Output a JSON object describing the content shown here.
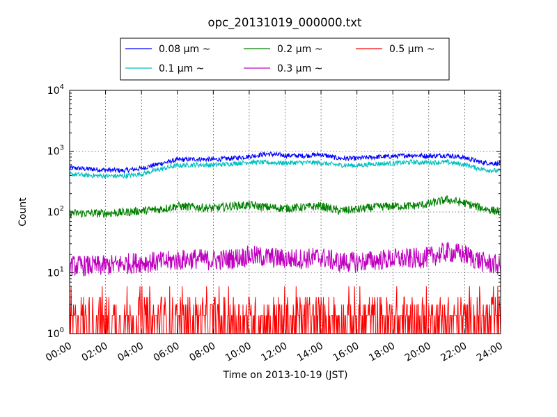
{
  "chart_data": {
    "type": "line",
    "title": "opc_20131019_000000.txt",
    "xlabel": "Time on 2013-10-19 (JST)",
    "ylabel": "Count",
    "yscale": "log",
    "ylim": [
      1,
      10000
    ],
    "xlim": [
      "00:00",
      "24:00"
    ],
    "grid": true,
    "legend_placement": "top-center, above plot",
    "x_ticks": [
      "00:00",
      "02:00",
      "04:00",
      "06:00",
      "08:00",
      "10:00",
      "12:00",
      "14:00",
      "16:00",
      "18:00",
      "20:00",
      "22:00",
      "24:00"
    ],
    "y_ticks": [
      {
        "base": "10",
        "exp": "0",
        "value": 1
      },
      {
        "base": "10",
        "exp": "1",
        "value": 10
      },
      {
        "base": "10",
        "exp": "2",
        "value": 100
      },
      {
        "base": "10",
        "exp": "3",
        "value": 1000
      },
      {
        "base": "10",
        "exp": "4",
        "value": 10000
      }
    ],
    "x": [
      "00:00",
      "01:00",
      "02:00",
      "03:00",
      "04:00",
      "05:00",
      "06:00",
      "07:00",
      "08:00",
      "09:00",
      "10:00",
      "11:00",
      "12:00",
      "13:00",
      "14:00",
      "15:00",
      "16:00",
      "17:00",
      "18:00",
      "19:00",
      "20:00",
      "21:00",
      "22:00",
      "23:00",
      "24:00"
    ],
    "series": [
      {
        "name": "0.08 μm ~",
        "color": "#0000ff",
        "noise": 0.09,
        "values": [
          530,
          510,
          490,
          480,
          520,
          620,
          720,
          740,
          730,
          760,
          820,
          900,
          850,
          840,
          880,
          760,
          760,
          800,
          820,
          860,
          830,
          860,
          780,
          650,
          620
        ]
      },
      {
        "name": "0.1 μm ~",
        "color": "#00bfbf",
        "noise": 0.09,
        "values": [
          420,
          400,
          390,
          390,
          420,
          500,
          580,
          600,
          590,
          620,
          660,
          650,
          640,
          650,
          640,
          590,
          580,
          620,
          630,
          660,
          650,
          660,
          600,
          500,
          470
        ]
      },
      {
        "name": "0.2 μm ~",
        "color": "#008000",
        "noise": 0.16,
        "values": [
          95,
          95,
          95,
          98,
          105,
          110,
          125,
          120,
          115,
          125,
          130,
          120,
          115,
          120,
          125,
          105,
          110,
          120,
          125,
          125,
          135,
          160,
          140,
          115,
          100
        ]
      },
      {
        "name": "0.3 μm ~",
        "color": "#bf00bf",
        "noise": 0.4,
        "values": [
          13,
          13,
          13,
          14,
          15,
          15,
          16,
          17,
          16,
          17,
          19,
          18,
          17,
          17,
          18,
          15,
          15,
          16,
          17,
          17,
          18,
          22,
          20,
          15,
          13
        ]
      },
      {
        "name": "0.5 μm ~",
        "color": "#ff0000",
        "noise": 0,
        "discrete": true,
        "values": [
          1.6,
          1.5,
          1.5,
          1.5,
          1.6,
          1.7,
          1.8,
          1.8,
          1.9,
          2.0,
          2.0,
          2.1,
          2.0,
          2.0,
          2.1,
          1.9,
          2.0,
          2.1,
          2.1,
          2.0,
          2.0,
          2.1,
          1.8,
          1.6,
          1.5
        ]
      }
    ]
  }
}
